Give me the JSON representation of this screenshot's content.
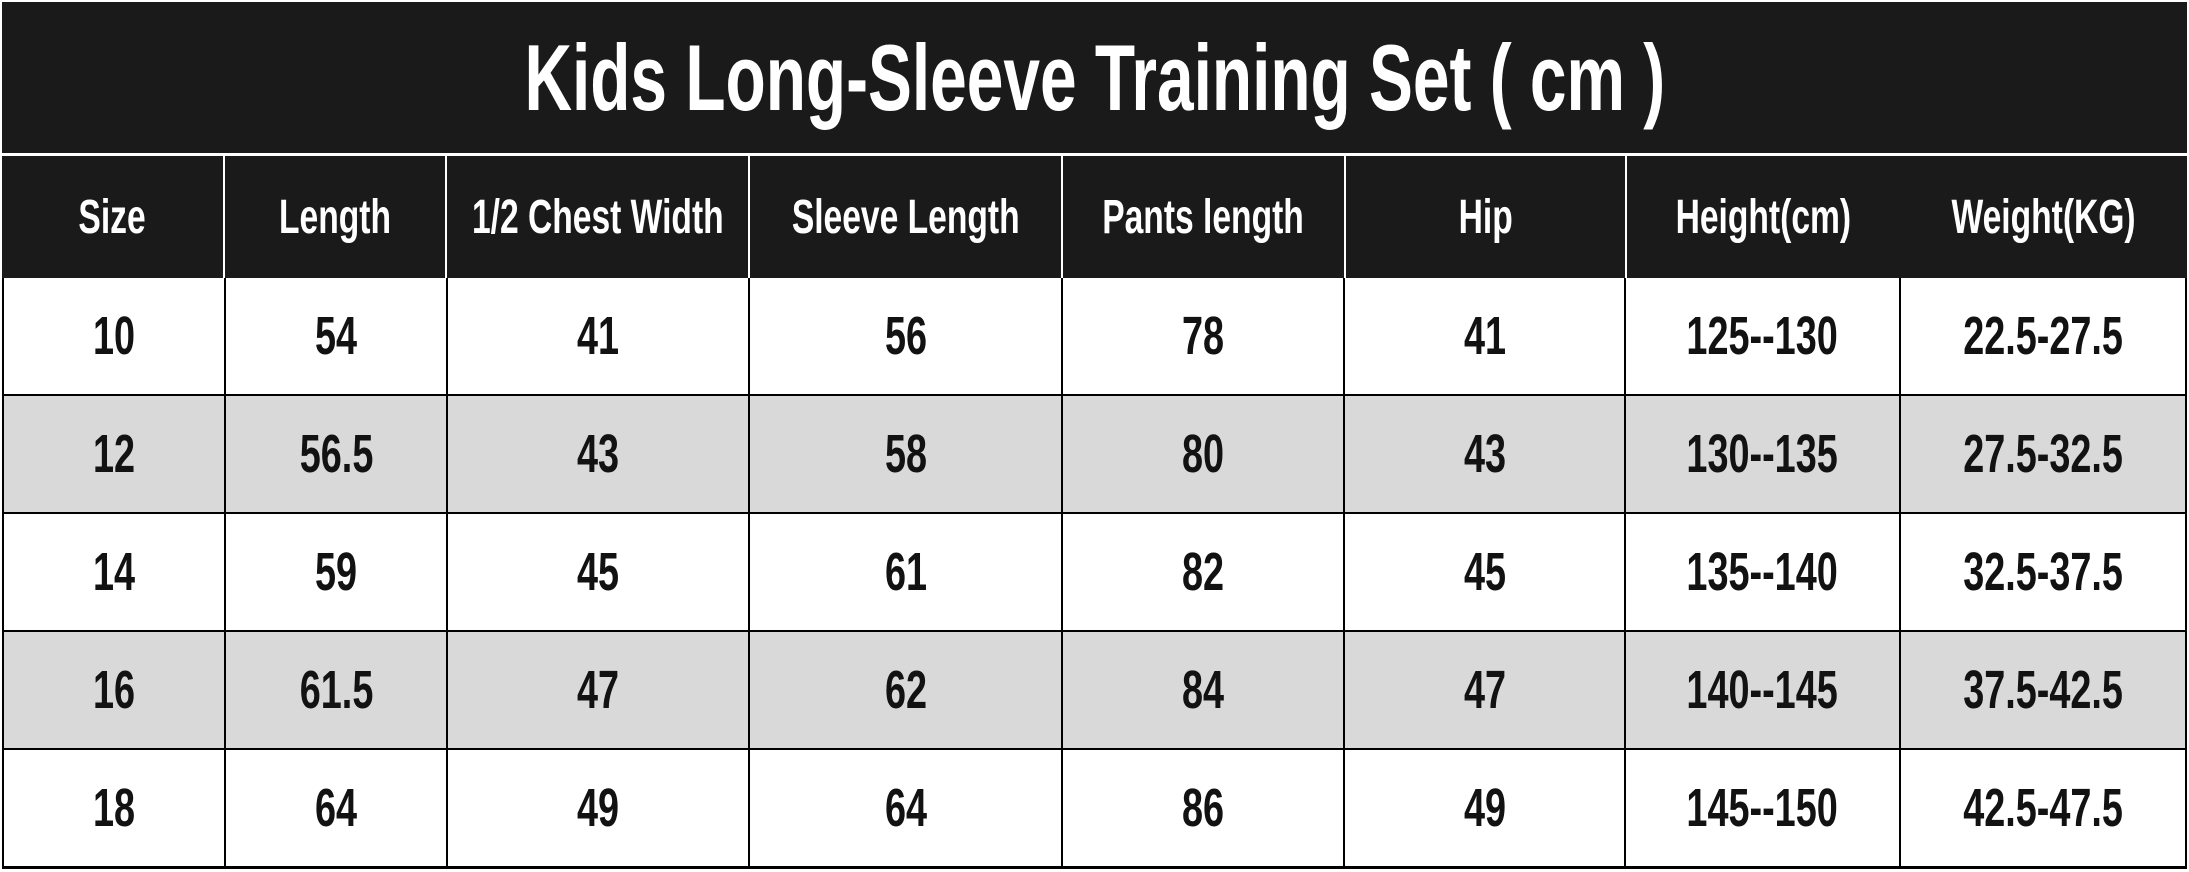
{
  "colors": {
    "header_bg": "#1a1a1a",
    "header_text": "#ffffff",
    "row_bg": "#ffffff",
    "row_alt_bg": "#d9d9d9",
    "border": "#000000"
  },
  "chart_data": {
    "type": "table",
    "title": "Kids Long-Sleeve Training Set ( cm )",
    "columns": [
      "Size",
      "Length",
      "1/2 Chest Width",
      "Sleeve Length",
      "Pants length",
      "Hip",
      "Height(cm)",
      "Weight(KG)"
    ],
    "rows": [
      [
        "10",
        "54",
        "41",
        "56",
        "78",
        "41",
        "125--130",
        "22.5-27.5"
      ],
      [
        "12",
        "56.5",
        "43",
        "58",
        "80",
        "43",
        "130--135",
        "27.5-32.5"
      ],
      [
        "14",
        "59",
        "45",
        "61",
        "82",
        "45",
        "135--140",
        "32.5-37.5"
      ],
      [
        "16",
        "61.5",
        "47",
        "62",
        "84",
        "47",
        "140--145",
        "37.5-42.5"
      ],
      [
        "18",
        "64",
        "49",
        "64",
        "86",
        "49",
        "145--150",
        "42.5-47.5"
      ]
    ]
  }
}
